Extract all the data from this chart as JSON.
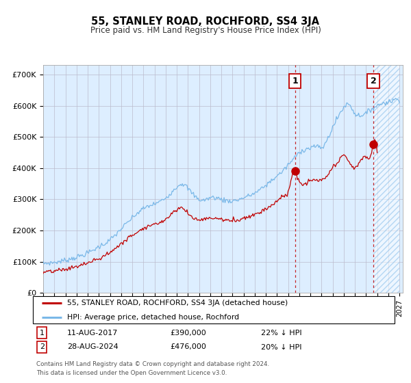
{
  "title": "55, STANLEY ROAD, ROCHFORD, SS4 3JA",
  "subtitle": "Price paid vs. HM Land Registry's House Price Index (HPI)",
  "ylabel_ticks": [
    "£0",
    "£100K",
    "£200K",
    "£300K",
    "£400K",
    "£500K",
    "£600K",
    "£700K"
  ],
  "ytick_vals": [
    0,
    100000,
    200000,
    300000,
    400000,
    500000,
    600000,
    700000
  ],
  "ylim": [
    0,
    730000
  ],
  "xlim_start": 1995.0,
  "xlim_end": 2027.3,
  "hpi_color": "#7ab8e8",
  "price_color": "#c00000",
  "sale1_year": 2017.62,
  "sale2_year": 2024.66,
  "sale1_price": 390000,
  "sale2_price": 476000,
  "sale1_date": "11-AUG-2017",
  "sale2_date": "28-AUG-2024",
  "sale1_label": "22% ↓ HPI",
  "sale2_label": "20% ↓ HPI",
  "legend_line1": "55, STANLEY ROAD, ROCHFORD, SS4 3JA (detached house)",
  "legend_line2": "HPI: Average price, detached house, Rochford",
  "footnote": "Contains HM Land Registry data © Crown copyright and database right 2024.\nThis data is licensed under the Open Government Licence v3.0.",
  "bg_color": "#ddeeff",
  "grid_color": "#bbbbcc",
  "hatch_bg": "#cce0f5"
}
